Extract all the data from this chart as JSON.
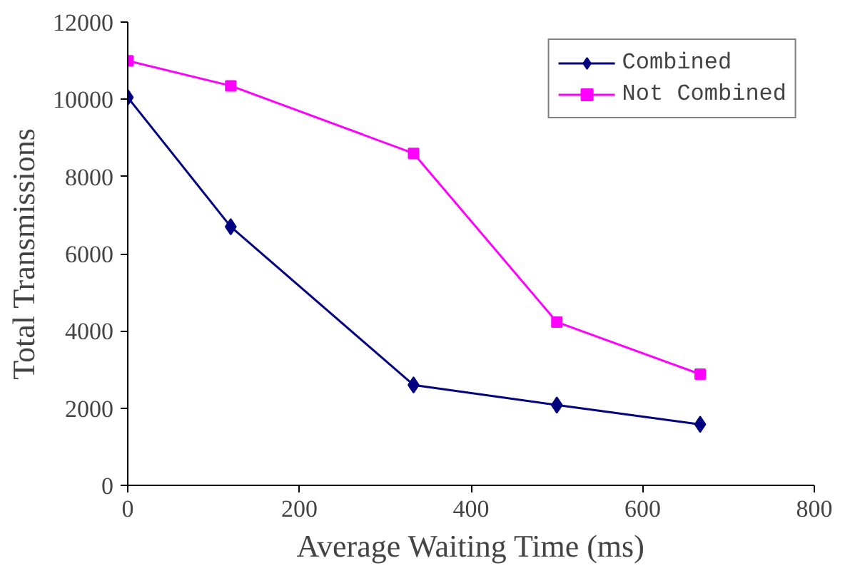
{
  "chart_data": {
    "type": "line",
    "xlabel": "Average Waiting Time (ms)",
    "ylabel": "Total Transmissions",
    "x": [
      0,
      120,
      333,
      500,
      667
    ],
    "series": [
      {
        "name": "Combined",
        "color": "#000080",
        "marker": "diamond",
        "values": [
          10050,
          6700,
          2600,
          2080,
          1580
        ]
      },
      {
        "name": "Not Combined",
        "color": "#ff00ff",
        "marker": "square",
        "values": [
          11000,
          10350,
          8600,
          4230,
          2880
        ]
      }
    ],
    "xlim": [
      0,
      800
    ],
    "xticks": [
      0,
      200,
      400,
      600,
      800
    ],
    "ylim": [
      0,
      12000
    ],
    "yticks": [
      0,
      2000,
      4000,
      6000,
      8000,
      10000,
      12000
    ],
    "grid": false,
    "legend": "top right",
    "line_style": "solid"
  }
}
